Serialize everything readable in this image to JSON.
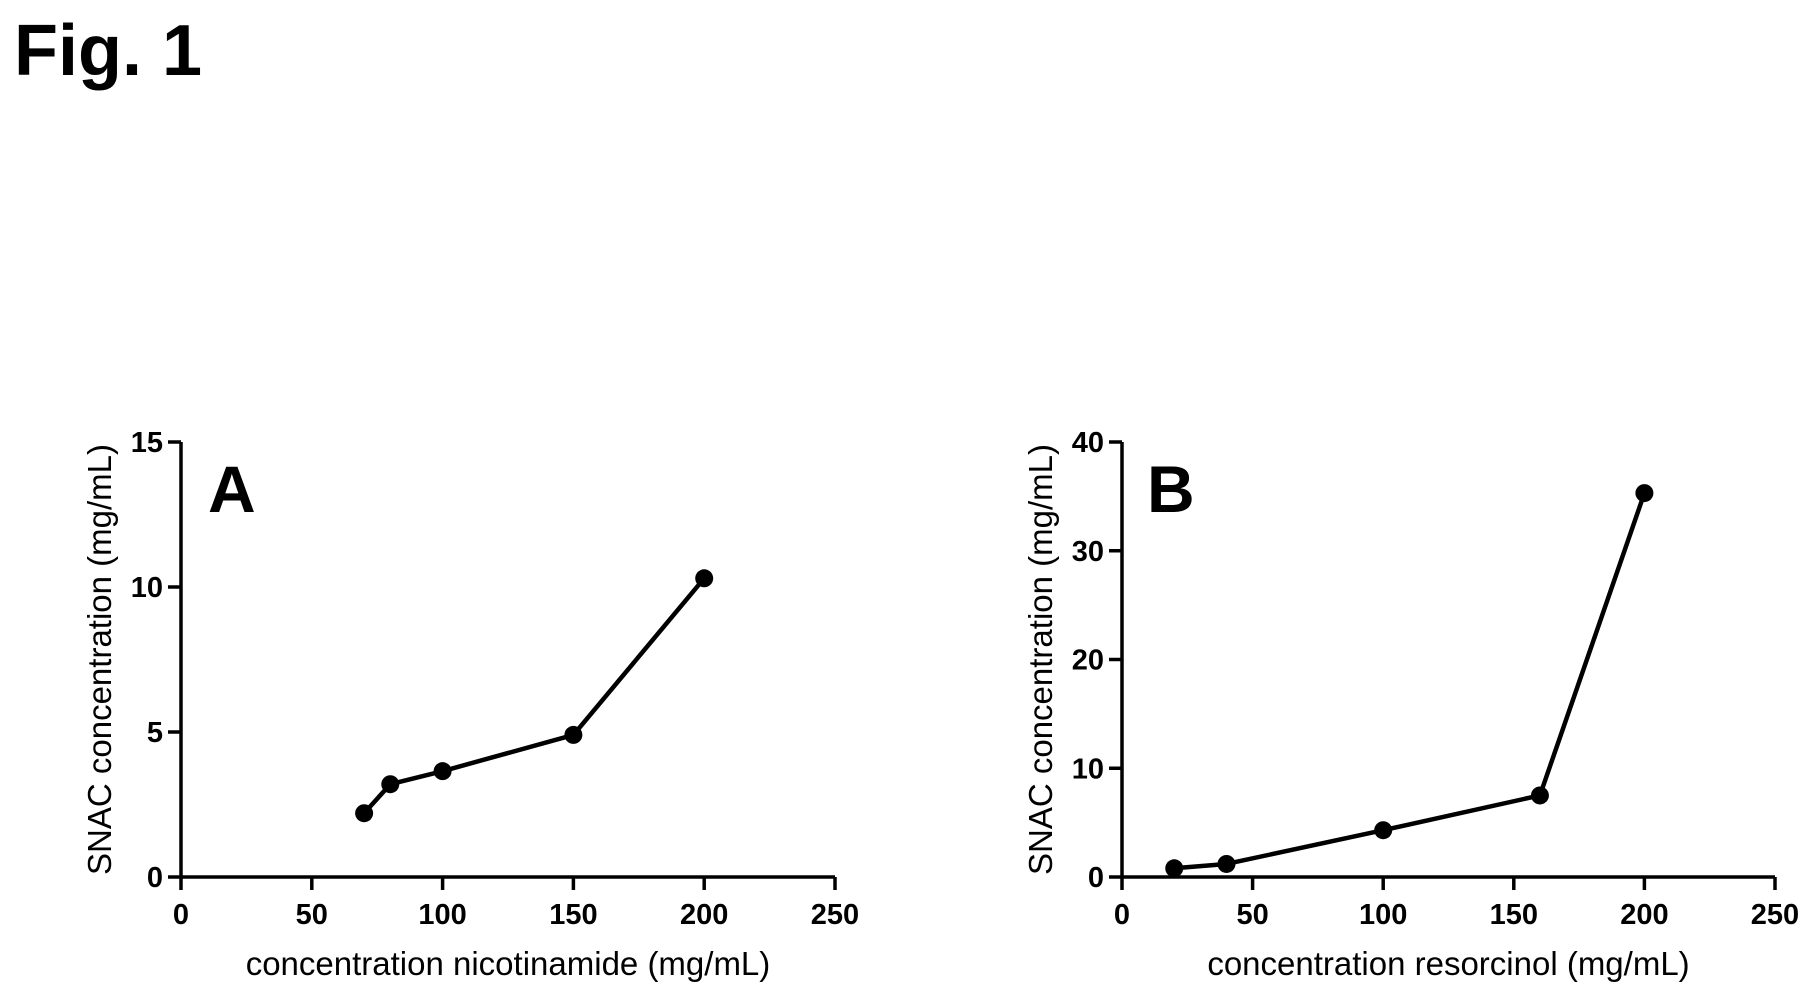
{
  "figure": {
    "title": "Fig. 1"
  },
  "chart_data": [
    {
      "type": "line",
      "panel": "A",
      "xlabel": "concentration nicotinamide (mg/mL)",
      "ylabel": "SNAC concentration (mg/mL)",
      "xlim": [
        0,
        250
      ],
      "ylim": [
        0,
        15
      ],
      "xticks": [
        0,
        50,
        100,
        150,
        200,
        250
      ],
      "yticks": [
        0,
        5,
        10,
        15
      ],
      "grid": false,
      "series": [
        {
          "x": [
            70,
            80,
            100,
            150,
            200
          ],
          "y": [
            2.2,
            3.2,
            3.65,
            4.9,
            10.3
          ]
        }
      ]
    },
    {
      "type": "line",
      "panel": "B",
      "xlabel": "concentration resorcinol (mg/mL)",
      "ylabel": "SNAC concentration (mg/mL)",
      "xlim": [
        0,
        250
      ],
      "ylim": [
        0,
        40
      ],
      "xticks": [
        0,
        50,
        100,
        150,
        200,
        250
      ],
      "yticks": [
        0,
        10,
        20,
        30,
        40
      ],
      "grid": false,
      "series": [
        {
          "x": [
            20,
            40,
            100,
            160,
            200
          ],
          "y": [
            0.8,
            1.2,
            4.3,
            7.5,
            35.3
          ]
        }
      ]
    }
  ]
}
